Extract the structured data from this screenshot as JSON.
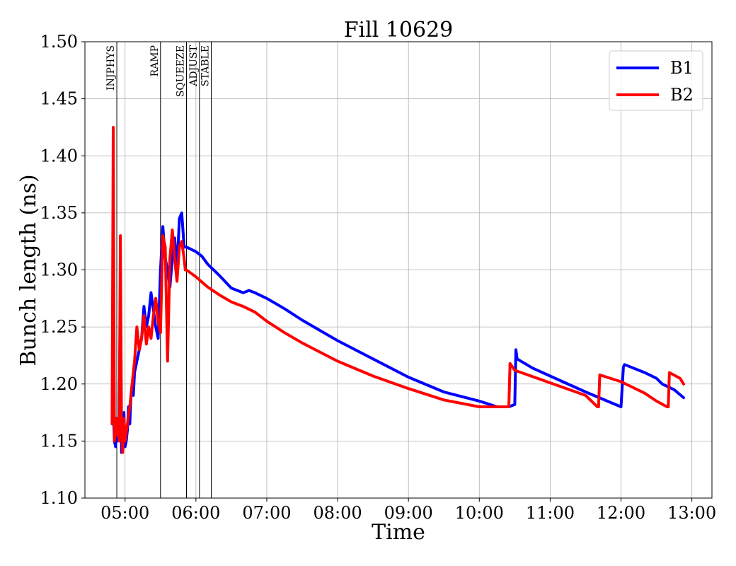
{
  "chart_data": {
    "type": "line",
    "title": "Fill 10629",
    "xlabel": "Time",
    "ylabel": "Bunch length (ns)",
    "xlim": [
      "04:26",
      "13:17"
    ],
    "ylim": [
      1.1,
      1.5
    ],
    "x_ticks": [
      "05:00",
      "06:00",
      "07:00",
      "08:00",
      "09:00",
      "10:00",
      "11:00",
      "12:00",
      "13:00"
    ],
    "y_ticks": [
      "1.10",
      "1.15",
      "1.20",
      "1.25",
      "1.30",
      "1.35",
      "1.40",
      "1.45",
      "1.50"
    ],
    "grid": true,
    "legend": "top-right",
    "phases": [
      {
        "label": "INJPHYS",
        "time": "04:53"
      },
      {
        "label": "RAMP",
        "time": "05:30"
      },
      {
        "label": "SQUEEZE",
        "time": "05:52"
      },
      {
        "label": "ADJUST",
        "time": "06:03"
      },
      {
        "label": "STABLE",
        "time": "06:13"
      }
    ],
    "series": [
      {
        "name": "B1",
        "color": "#0000ff",
        "x": [
          "04:50",
          "04:51",
          "04:52",
          "04:53",
          "04:54",
          "04:55",
          "04:56",
          "04:57",
          "04:58",
          "04:59",
          "05:00",
          "05:01",
          "05:02",
          "05:03",
          "05:04",
          "05:05",
          "05:06",
          "05:07",
          "05:08",
          "05:10",
          "05:12",
          "05:14",
          "05:16",
          "05:18",
          "05:20",
          "05:22",
          "05:24",
          "05:26",
          "05:28",
          "05:30",
          "05:32",
          "05:34",
          "05:36",
          "05:38",
          "05:40",
          "05:42",
          "05:44",
          "05:46",
          "05:48",
          "05:50",
          "05:51",
          "05:52",
          "06:00",
          "06:05",
          "06:10",
          "06:15",
          "06:20",
          "06:30",
          "06:40",
          "06:45",
          "06:50",
          "07:00",
          "07:15",
          "07:30",
          "07:45",
          "08:00",
          "08:30",
          "09:00",
          "09:30",
          "10:00",
          "10:15",
          "10:25",
          "10:30",
          "10:31",
          "10:32",
          "10:45",
          "11:00",
          "11:30",
          "12:00",
          "12:02",
          "12:03",
          "12:20",
          "12:30",
          "12:35",
          "12:45",
          "12:53"
        ],
        "values": [
          1.18,
          1.15,
          1.145,
          1.17,
          1.15,
          1.16,
          1.285,
          1.14,
          1.16,
          1.175,
          1.145,
          1.15,
          1.16,
          1.18,
          1.165,
          1.19,
          1.2,
          1.19,
          1.21,
          1.22,
          1.23,
          1.24,
          1.268,
          1.25,
          1.26,
          1.28,
          1.265,
          1.25,
          1.24,
          1.3,
          1.338,
          1.31,
          1.3,
          1.285,
          1.31,
          1.328,
          1.3,
          1.345,
          1.35,
          1.32,
          1.32,
          1.32,
          1.316,
          1.312,
          1.305,
          1.3,
          1.295,
          1.284,
          1.28,
          1.282,
          1.28,
          1.275,
          1.266,
          1.256,
          1.247,
          1.238,
          1.222,
          1.206,
          1.193,
          1.185,
          1.18,
          1.18,
          1.182,
          1.23,
          1.222,
          1.214,
          1.207,
          1.193,
          1.18,
          1.215,
          1.217,
          1.21,
          1.205,
          1.2,
          1.195,
          1.188
        ]
      },
      {
        "name": "B2",
        "color": "#ff0000",
        "x": [
          "04:49",
          "04:50",
          "04:51",
          "04:52",
          "04:53",
          "04:54",
          "04:55",
          "04:56",
          "04:57",
          "04:58",
          "04:59",
          "05:00",
          "05:02",
          "05:04",
          "05:06",
          "05:08",
          "05:10",
          "05:12",
          "05:14",
          "05:16",
          "05:18",
          "05:20",
          "05:22",
          "05:24",
          "05:26",
          "05:28",
          "05:30",
          "05:32",
          "05:34",
          "05:36",
          "05:38",
          "05:40",
          "05:42",
          "05:44",
          "05:46",
          "05:48",
          "05:50",
          "05:51",
          "05:52",
          "06:00",
          "06:10",
          "06:20",
          "06:30",
          "06:40",
          "06:50",
          "07:00",
          "07:15",
          "07:30",
          "07:45",
          "08:00",
          "08:30",
          "09:00",
          "09:30",
          "10:00",
          "10:15",
          "10:25",
          "10:26",
          "10:30",
          "11:00",
          "11:30",
          "11:40",
          "11:41",
          "11:42",
          "12:00",
          "12:20",
          "12:30",
          "12:39",
          "12:40",
          "12:41",
          "12:50",
          "12:53"
        ],
        "values": [
          1.165,
          1.425,
          1.15,
          1.17,
          1.155,
          1.17,
          1.15,
          1.33,
          1.16,
          1.14,
          1.17,
          1.15,
          1.165,
          1.18,
          1.2,
          1.22,
          1.25,
          1.23,
          1.24,
          1.26,
          1.235,
          1.25,
          1.24,
          1.26,
          1.275,
          1.255,
          1.245,
          1.33,
          1.32,
          1.22,
          1.31,
          1.335,
          1.31,
          1.29,
          1.32,
          1.325,
          1.31,
          1.3,
          1.3,
          1.294,
          1.285,
          1.278,
          1.272,
          1.268,
          1.263,
          1.255,
          1.245,
          1.236,
          1.228,
          1.22,
          1.207,
          1.196,
          1.186,
          1.18,
          1.18,
          1.18,
          1.218,
          1.212,
          1.201,
          1.19,
          1.18,
          1.18,
          1.208,
          1.202,
          1.192,
          1.185,
          1.18,
          1.18,
          1.21,
          1.205,
          1.2
        ]
      }
    ]
  }
}
